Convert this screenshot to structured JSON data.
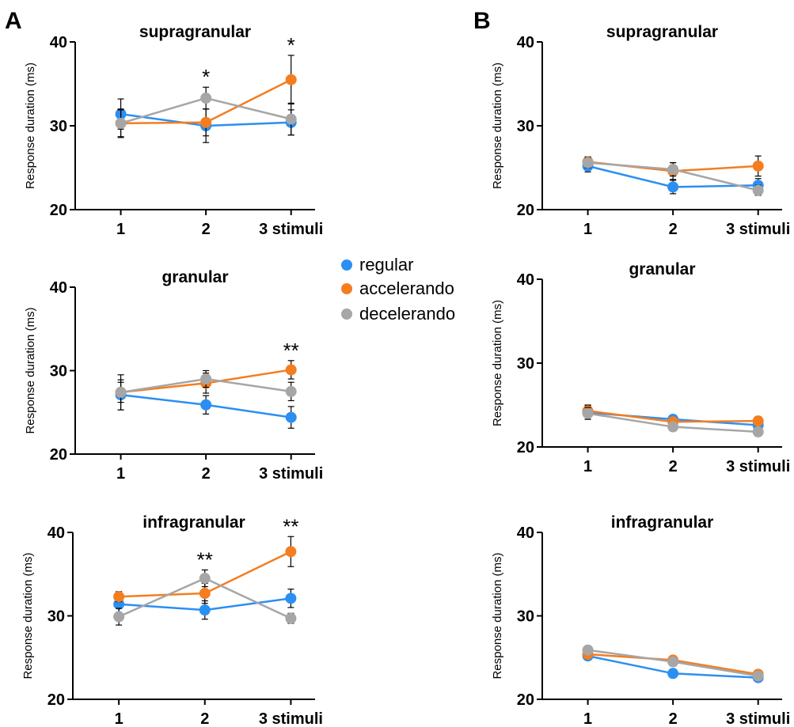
{
  "panel_labels": [
    "A",
    "B"
  ],
  "legend": [
    {
      "label": "regular",
      "color": "#2b8ff2"
    },
    {
      "label": "accelerando",
      "color": "#f47d20"
    },
    {
      "label": "decelerando",
      "color": "#a6a6a6"
    }
  ],
  "chart_data": [
    {
      "type": "line",
      "panel": "A",
      "title": "supragranular",
      "ylabel": "Response duration (ms)",
      "ylim": [
        20,
        40
      ],
      "yticks": [
        20,
        30,
        40
      ],
      "categories": [
        "1",
        "2",
        "3 stimuli"
      ],
      "series": [
        {
          "name": "regular",
          "values": [
            31.4,
            30.0,
            30.4
          ],
          "err": [
            1.8,
            2.0,
            1.5
          ]
        },
        {
          "name": "accelerando",
          "values": [
            30.3,
            30.4,
            35.5
          ],
          "err": [
            1.7,
            1.6,
            2.9
          ]
        },
        {
          "name": "decelerando",
          "values": [
            30.3,
            33.3,
            30.8
          ],
          "err": [
            1.6,
            1.3,
            1.9
          ]
        }
      ],
      "annotations": [
        "",
        "*",
        "*"
      ]
    },
    {
      "type": "line",
      "panel": "A",
      "title": "granular",
      "ylabel": "Response duration (ms)",
      "ylim": [
        20,
        40
      ],
      "yticks": [
        20,
        30,
        40
      ],
      "categories": [
        "1",
        "2",
        "3 stimuli"
      ],
      "series": [
        {
          "name": "regular",
          "values": [
            27.1,
            25.9,
            24.4
          ],
          "err": [
            1.8,
            1.1,
            1.3
          ]
        },
        {
          "name": "accelerando",
          "values": [
            27.4,
            28.5,
            30.1
          ],
          "err": [
            1.2,
            1.2,
            1.1
          ]
        },
        {
          "name": "decelerando",
          "values": [
            27.4,
            29.0,
            27.5
          ],
          "err": [
            2.1,
            1.0,
            1.1
          ]
        }
      ],
      "annotations": [
        "",
        "",
        "**"
      ]
    },
    {
      "type": "line",
      "panel": "A",
      "title": "infragranular",
      "ylabel": "Response duration (ms)",
      "ylim": [
        20,
        40
      ],
      "yticks": [
        20,
        30,
        40
      ],
      "categories": [
        "1",
        "2",
        "3 stimuli"
      ],
      "series": [
        {
          "name": "regular",
          "values": [
            31.4,
            30.7,
            32.1
          ],
          "err": [
            1.1,
            1.1,
            1.1
          ]
        },
        {
          "name": "accelerando",
          "values": [
            32.3,
            32.7,
            37.7
          ],
          "err": [
            0.6,
            1.2,
            1.8
          ]
        },
        {
          "name": "decelerando",
          "values": [
            29.9,
            34.5,
            29.7
          ],
          "err": [
            1.0,
            1.0,
            0.6
          ]
        }
      ],
      "annotations": [
        "",
        "**",
        "**"
      ]
    },
    {
      "type": "line",
      "panel": "B",
      "title": "supragranular",
      "ylabel": "Response duration (ms)",
      "ylim": [
        20,
        40
      ],
      "yticks": [
        20,
        30,
        40
      ],
      "categories": [
        "1",
        "2",
        "3 stimuli"
      ],
      "series": [
        {
          "name": "regular",
          "values": [
            25.2,
            22.7,
            22.9
          ],
          "err": [
            0.7,
            0.8,
            0.8
          ]
        },
        {
          "name": "accelerando",
          "values": [
            25.7,
            24.6,
            25.2
          ],
          "err": [
            0.6,
            1.0,
            1.2
          ]
        },
        {
          "name": "decelerando",
          "values": [
            25.6,
            24.8,
            22.3
          ],
          "err": [
            0.6,
            0.8,
            0.6
          ]
        }
      ],
      "annotations": [
        "",
        "",
        ""
      ]
    },
    {
      "type": "line",
      "panel": "B",
      "title": "granular",
      "ylabel": "Response duration (ms)",
      "ylim": [
        20,
        40
      ],
      "yticks": [
        20,
        30,
        40
      ],
      "categories": [
        "1",
        "2",
        "3 stimuli"
      ],
      "series": [
        {
          "name": "regular",
          "values": [
            24.1,
            23.3,
            22.6
          ],
          "err": [
            0.8,
            0.5,
            0.5
          ]
        },
        {
          "name": "accelerando",
          "values": [
            24.3,
            23.0,
            23.1
          ],
          "err": [
            0.7,
            0.5,
            0.5
          ]
        },
        {
          "name": "decelerando",
          "values": [
            24.0,
            22.4,
            21.8
          ],
          "err": [
            0.7,
            0.5,
            0.5
          ]
        }
      ],
      "annotations": [
        "",
        "",
        ""
      ]
    },
    {
      "type": "line",
      "panel": "B",
      "title": "infragranular",
      "ylabel": "Response duration (ms)",
      "ylim": [
        20,
        40
      ],
      "yticks": [
        20,
        30,
        40
      ],
      "categories": [
        "1",
        "2",
        "3 stimuli"
      ],
      "series": [
        {
          "name": "regular",
          "values": [
            25.2,
            23.1,
            22.6
          ],
          "err": [
            0.5,
            0.5,
            0.4
          ]
        },
        {
          "name": "accelerando",
          "values": [
            25.4,
            24.7,
            23.0
          ],
          "err": [
            0.5,
            0.5,
            0.4
          ]
        },
        {
          "name": "decelerando",
          "values": [
            25.9,
            24.5,
            22.8
          ],
          "err": [
            0.5,
            0.5,
            0.4
          ]
        }
      ],
      "annotations": [
        "",
        "",
        ""
      ]
    }
  ]
}
